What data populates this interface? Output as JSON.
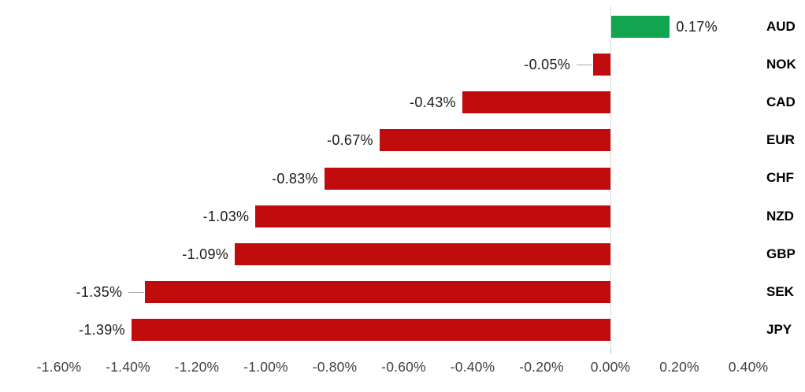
{
  "chart_data": {
    "type": "bar",
    "orientation": "horizontal",
    "title": "",
    "xlabel": "",
    "ylabel": "",
    "grid": false,
    "legend": false,
    "categories": [
      "AUD",
      "NOK",
      "CAD",
      "EUR",
      "CHF",
      "NZD",
      "GBP",
      "SEK",
      "JPY"
    ],
    "values": [
      0.17,
      -0.05,
      -0.43,
      -0.67,
      -0.83,
      -1.03,
      -1.09,
      -1.35,
      -1.39
    ],
    "data_labels": [
      "0.17%",
      "-0.05%",
      "-0.43%",
      "-0.67%",
      "-0.83%",
      "-1.03%",
      "-1.09%",
      "-1.35%",
      "-1.39%"
    ],
    "labels_with_leader_lines": [
      "NOK",
      "SEK"
    ],
    "x_axis": {
      "min": -1.6,
      "max": 0.4,
      "step": 0.2,
      "tick_labels": [
        "-1.60%",
        "-1.40%",
        "-1.20%",
        "-1.00%",
        "-0.80%",
        "-0.60%",
        "-0.40%",
        "-0.20%",
        "0.00%",
        "0.20%",
        "0.40%"
      ]
    },
    "colors": {
      "positive_bar": "#12a550",
      "negative_bar": "#c00c0c",
      "axis_line": "#d9d9d9",
      "axis_tick": "#bfbfbf",
      "leader_line": "#a6a6a6",
      "tick_text": "#404040",
      "data_label_text": "#1a1a1a",
      "category_text": "#000000"
    }
  }
}
